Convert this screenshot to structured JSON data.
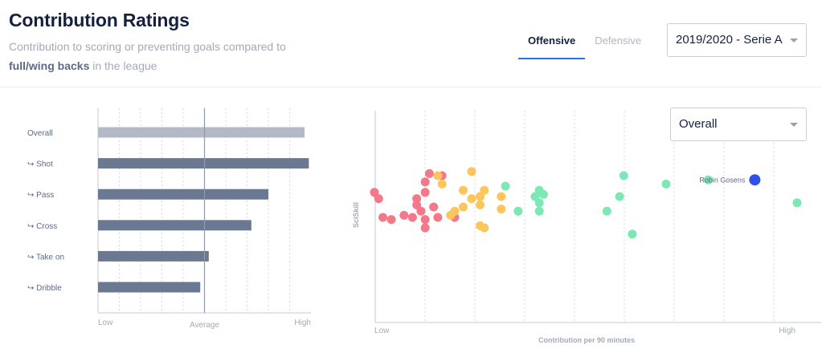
{
  "header": {
    "title": "Contribution Ratings",
    "subtitle_prefix": "Contribution to scoring or preventing goals compared to",
    "subtitle_bold": "full/wing backs",
    "subtitle_suffix": "in the league"
  },
  "tabs": [
    {
      "label": "Offensive",
      "active": true
    },
    {
      "label": "Defensive",
      "active": false
    }
  ],
  "season_select": {
    "value": "2019/2020 - Serie A"
  },
  "metric_select": {
    "value": "Overall"
  },
  "colors": {
    "overall_bar": "#b3b9c6",
    "sub_bar": "#6b7891",
    "red": "#f5778a",
    "yellow": "#fdc65c",
    "green": "#7ee8b4",
    "highlight": "#2f50e8"
  },
  "chart_data": [
    {
      "type": "bar",
      "orientation": "horizontal",
      "categories": [
        "Overall",
        "↪ Shot",
        "↪ Pass",
        "↪ Cross",
        "↪ Take on",
        "↪ Dribble"
      ],
      "values": [
        0.97,
        0.99,
        0.8,
        0.72,
        0.52,
        0.48
      ],
      "xtick_labels": [
        "Low",
        "Average",
        "High"
      ],
      "xlim": [
        0,
        1
      ],
      "average_value": 0.5,
      "grid": true
    },
    {
      "type": "scatter",
      "xlabel": "Contribution per 90 minutes",
      "ylabel": "SciSkill",
      "xtick_labels": [
        "Low",
        "High"
      ],
      "xlim": [
        0,
        1
      ],
      "ylim": [
        0,
        1
      ],
      "grid": true,
      "highlight": {
        "name": "Robin Gosens",
        "x": 0.9,
        "y": 0.58
      },
      "groups": [
        {
          "color_key": "red",
          "points": [
            [
              0.0,
              0.52
            ],
            [
              0.01,
              0.49
            ],
            [
              0.02,
              0.4
            ],
            [
              0.04,
              0.39
            ],
            [
              0.07,
              0.41
            ],
            [
              0.09,
              0.4
            ],
            [
              0.1,
              0.49
            ],
            [
              0.1,
              0.46
            ],
            [
              0.11,
              0.43
            ],
            [
              0.12,
              0.52
            ],
            [
              0.12,
              0.57
            ],
            [
              0.12,
              0.35
            ],
            [
              0.12,
              0.39
            ],
            [
              0.13,
              0.61
            ],
            [
              0.14,
              0.45
            ],
            [
              0.15,
              0.4
            ],
            [
              0.16,
              0.6
            ],
            [
              0.19,
              0.4
            ]
          ]
        },
        {
          "color_key": "yellow",
          "points": [
            [
              0.15,
              0.6
            ],
            [
              0.16,
              0.56
            ],
            [
              0.18,
              0.41
            ],
            [
              0.19,
              0.43
            ],
            [
              0.21,
              0.45
            ],
            [
              0.21,
              0.53
            ],
            [
              0.23,
              0.62
            ],
            [
              0.23,
              0.49
            ],
            [
              0.25,
              0.5
            ],
            [
              0.25,
              0.46
            ],
            [
              0.25,
              0.36
            ],
            [
              0.26,
              0.53
            ],
            [
              0.26,
              0.35
            ],
            [
              0.3,
              0.5
            ],
            [
              0.3,
              0.44
            ]
          ]
        },
        {
          "color_key": "green",
          "points": [
            [
              0.31,
              0.55
            ],
            [
              0.34,
              0.43
            ],
            [
              0.38,
              0.5
            ],
            [
              0.39,
              0.53
            ],
            [
              0.39,
              0.47
            ],
            [
              0.39,
              0.43
            ],
            [
              0.4,
              0.51
            ],
            [
              0.55,
              0.43
            ],
            [
              0.58,
              0.5
            ],
            [
              0.59,
              0.6
            ],
            [
              0.61,
              0.32
            ],
            [
              0.69,
              0.56
            ],
            [
              0.79,
              0.58
            ],
            [
              1.0,
              0.47
            ]
          ]
        }
      ]
    }
  ]
}
